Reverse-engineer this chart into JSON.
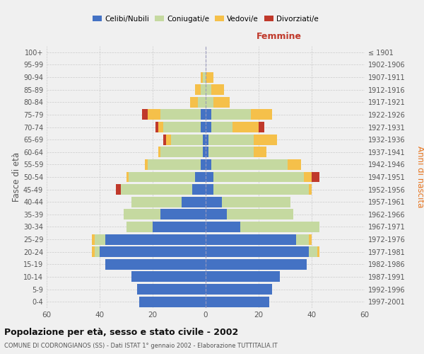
{
  "age_groups": [
    "0-4",
    "5-9",
    "10-14",
    "15-19",
    "20-24",
    "25-29",
    "30-34",
    "35-39",
    "40-44",
    "45-49",
    "50-54",
    "55-59",
    "60-64",
    "65-69",
    "70-74",
    "75-79",
    "80-84",
    "85-89",
    "90-94",
    "95-99",
    "100+"
  ],
  "birth_years": [
    "1997-2001",
    "1992-1996",
    "1987-1991",
    "1982-1986",
    "1977-1981",
    "1972-1976",
    "1967-1971",
    "1962-1966",
    "1957-1961",
    "1952-1956",
    "1947-1951",
    "1942-1946",
    "1937-1941",
    "1932-1936",
    "1927-1931",
    "1922-1926",
    "1917-1921",
    "1912-1916",
    "1907-1911",
    "1902-1906",
    "≤ 1901"
  ],
  "male": {
    "celibi": [
      25,
      26,
      28,
      38,
      40,
      38,
      20,
      17,
      9,
      5,
      4,
      2,
      1,
      1,
      2,
      2,
      0,
      0,
      0,
      0,
      0
    ],
    "coniugati": [
      0,
      0,
      0,
      0,
      2,
      4,
      10,
      14,
      19,
      27,
      25,
      20,
      16,
      12,
      14,
      15,
      3,
      2,
      1,
      0,
      0
    ],
    "vedovi": [
      0,
      0,
      0,
      0,
      1,
      1,
      0,
      0,
      0,
      0,
      1,
      1,
      1,
      2,
      2,
      5,
      3,
      2,
      1,
      0,
      0
    ],
    "divorziati": [
      0,
      0,
      0,
      0,
      0,
      0,
      0,
      0,
      0,
      2,
      0,
      0,
      0,
      1,
      1,
      2,
      0,
      0,
      0,
      0,
      0
    ]
  },
  "female": {
    "nubili": [
      24,
      25,
      28,
      38,
      39,
      34,
      13,
      8,
      6,
      3,
      3,
      2,
      1,
      1,
      2,
      2,
      0,
      0,
      0,
      0,
      0
    ],
    "coniugate": [
      0,
      0,
      0,
      0,
      3,
      5,
      30,
      25,
      26,
      36,
      34,
      29,
      17,
      17,
      8,
      15,
      3,
      2,
      0,
      0,
      0
    ],
    "vedove": [
      0,
      0,
      0,
      0,
      1,
      1,
      0,
      0,
      0,
      1,
      3,
      5,
      5,
      9,
      10,
      8,
      6,
      5,
      3,
      0,
      0
    ],
    "divorziate": [
      0,
      0,
      0,
      0,
      0,
      0,
      0,
      0,
      0,
      0,
      3,
      0,
      0,
      0,
      2,
      0,
      0,
      0,
      0,
      0,
      0
    ]
  },
  "colors": {
    "celibi": "#4472C4",
    "coniugati": "#C5D9A0",
    "vedovi": "#F5C04A",
    "divorziati": "#C0392B"
  },
  "title": "Popolazione per età, sesso e stato civile - 2002",
  "subtitle": "COMUNE DI CODRONGIANOS (SS) - Dati ISTAT 1° gennaio 2002 - Elaborazione TUTTITALIA.IT",
  "xlabel_right": "Femmine",
  "ylabel_left": "Fasce di età",
  "ylabel_right": "Anni di nascita",
  "xlim": 60,
  "legend_labels": [
    "Celibi/Nubili",
    "Coniugati/e",
    "Vedovi/e",
    "Divorziati/e"
  ],
  "bg_color": "#f0f0f0",
  "bar_height": 0.85
}
